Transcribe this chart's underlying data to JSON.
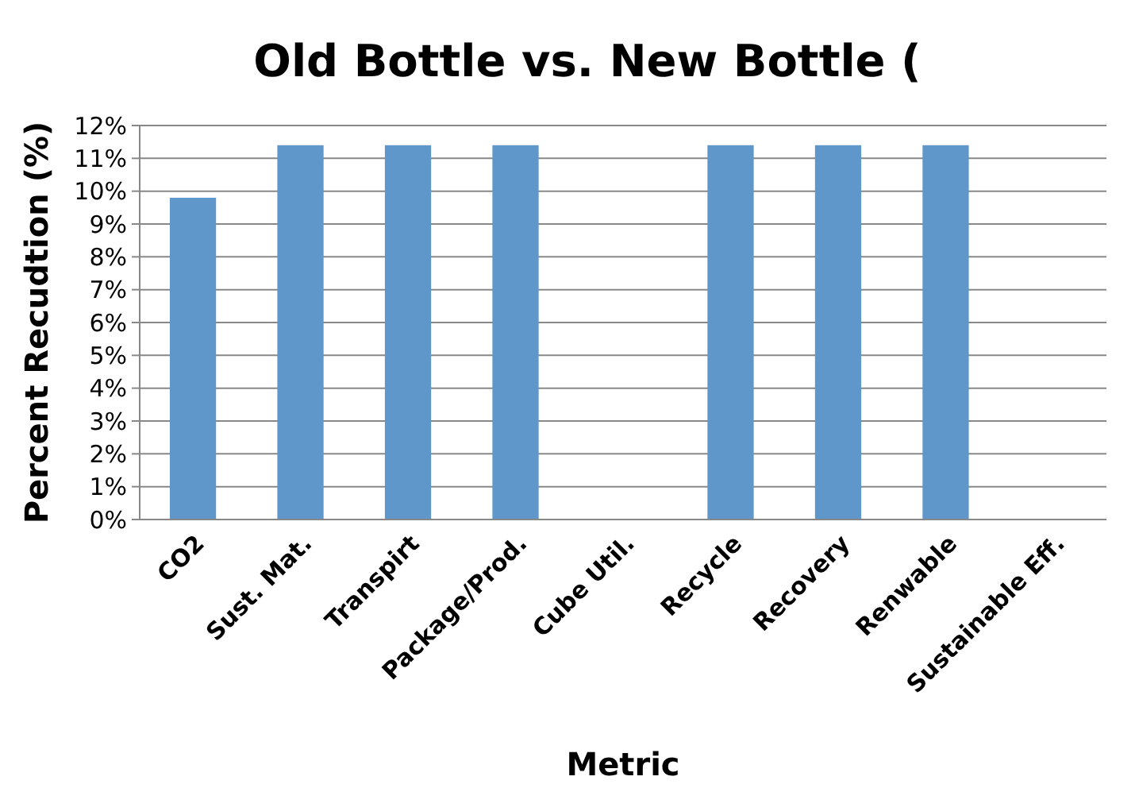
{
  "chart_data": {
    "type": "bar",
    "title": "Old Bottle vs. New Bottle (",
    "xlabel": "Metric",
    "ylabel": "Percent Recudtion (%)",
    "categories": [
      "CO2",
      "Sust. Mat.",
      "Transpirt",
      "Package/Prod.",
      "Cube Util.",
      "Recycle",
      "Recovery",
      "Renwable",
      "Sustainable Eff."
    ],
    "values": [
      9.8,
      11.4,
      11.4,
      11.4,
      0,
      11.4,
      11.4,
      11.4,
      0
    ],
    "color": "#5f97cb",
    "ylim": [
      0,
      12
    ],
    "yticks": [
      {
        "value": 0,
        "label": "0%"
      },
      {
        "value": 1,
        "label": "1%"
      },
      {
        "value": 2,
        "label": "2%"
      },
      {
        "value": 3,
        "label": "3%"
      },
      {
        "value": 4,
        "label": "4%"
      },
      {
        "value": 5,
        "label": "5%"
      },
      {
        "value": 6,
        "label": "6%"
      },
      {
        "value": 7,
        "label": "7%"
      },
      {
        "value": 8,
        "label": "8%"
      },
      {
        "value": 9,
        "label": "9%"
      },
      {
        "value": 10,
        "label": "10%"
      },
      {
        "value": 11,
        "label": "11%"
      },
      {
        "value": 12,
        "label": "12%"
      }
    ],
    "grid": "y"
  }
}
